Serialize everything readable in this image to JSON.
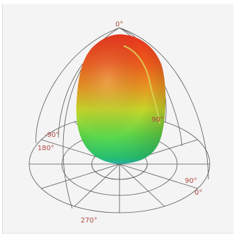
{
  "labels": {
    "elev_top": "0°",
    "elev_left": "-90°",
    "elev_right": "90°",
    "az_180": "180°",
    "az_90": "90°",
    "az_0": "0°",
    "az_270": "270°"
  },
  "colors": {
    "panel_bg": "#f4f4f4",
    "grid": "#555555",
    "label": "#b24a42",
    "pattern_top": "#e8341e",
    "pattern_mid": "#c6d62a",
    "pattern_bottom": "#2bd27a",
    "pattern_base": "#29c9b8"
  }
}
